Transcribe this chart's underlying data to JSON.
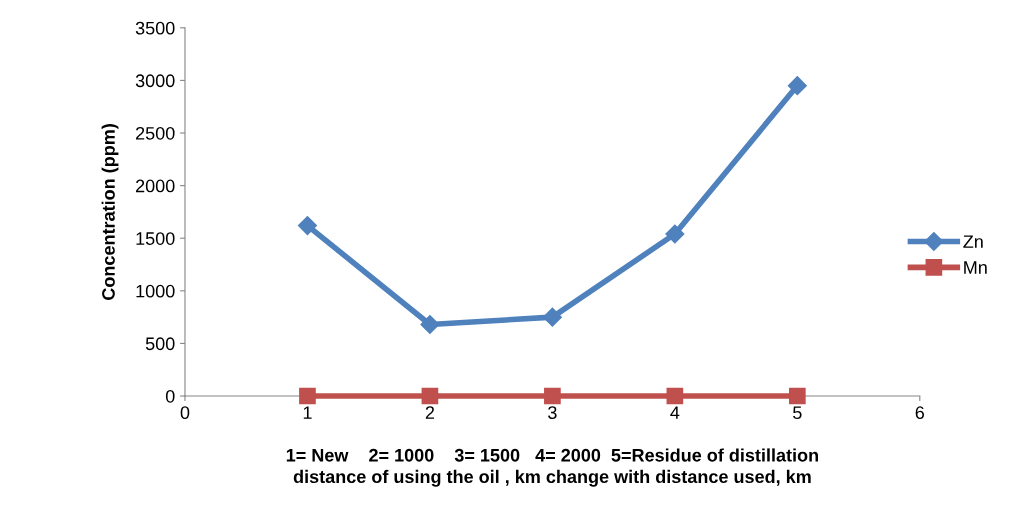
{
  "chart_data": {
    "type": "line",
    "xlabel": "distance of using the oil , km change with distance used, km",
    "ylabel": "Concentration (ppm)",
    "annotations": [
      "1= New    2= 1000    3= 1500   4= 2000  5=Residue of distillation"
    ],
    "x": [
      1,
      2,
      3,
      4,
      5
    ],
    "series": [
      {
        "name": "Zn",
        "color": "#4f81bd",
        "marker": "diamond",
        "values": [
          1620,
          680,
          750,
          1540,
          2950
        ]
      },
      {
        "name": "Mn",
        "color": "#c0504d",
        "marker": "square",
        "values": [
          0,
          0,
          0,
          0,
          0
        ]
      }
    ],
    "xlim": [
      0,
      6
    ],
    "xticks": [
      0,
      1,
      2,
      3,
      4,
      5,
      6
    ],
    "ylim": [
      0,
      3500
    ],
    "yticks": [
      0,
      500,
      1000,
      1500,
      2000,
      2500,
      3000,
      3500
    ],
    "grid": false,
    "legend": "right",
    "line_style": "solid"
  }
}
